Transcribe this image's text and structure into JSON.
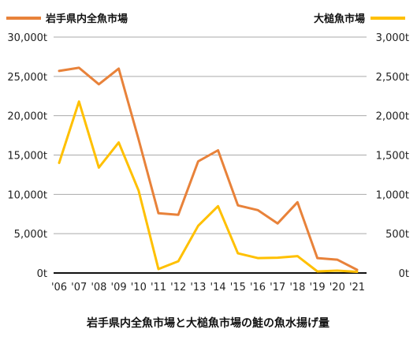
{
  "chart_data": {
    "type": "line",
    "title": "岩手県内全魚市場と大槌魚市場の鮭の魚水揚げ量",
    "x": [
      "'06",
      "'07",
      "'08",
      "'09",
      "'10",
      "'11",
      "'12",
      "'13",
      "'14",
      "'15",
      "'16",
      "'17",
      "'18",
      "'19",
      "'20",
      "'21"
    ],
    "series": [
      {
        "name": "岩手県内全魚市場",
        "axis": "left",
        "color": "#E8823A",
        "values": [
          25700,
          26100,
          24000,
          26000,
          17000,
          7600,
          7400,
          14200,
          15600,
          8600,
          8000,
          6300,
          9000,
          1900,
          1700,
          400
        ]
      },
      {
        "name": "大槌魚市場",
        "axis": "right",
        "color": "#FFC000",
        "values": [
          1400,
          2180,
          1340,
          1660,
          1050,
          50,
          150,
          600,
          850,
          250,
          190,
          195,
          215,
          20,
          30,
          15
        ]
      }
    ],
    "y_left": {
      "range": [
        0,
        30000
      ],
      "ticks": [
        "0t",
        "5,000t",
        "10,000t",
        "15,000t",
        "20,000t",
        "25,000t",
        "30,000t"
      ]
    },
    "y_right": {
      "range": [
        0,
        3000
      ],
      "ticks": [
        "0t",
        "500t",
        "1,000t",
        "1,500t",
        "2,000t",
        "2,500t",
        "3,000t"
      ]
    },
    "grid": true,
    "legend": [
      "top-left",
      "top-right"
    ]
  }
}
